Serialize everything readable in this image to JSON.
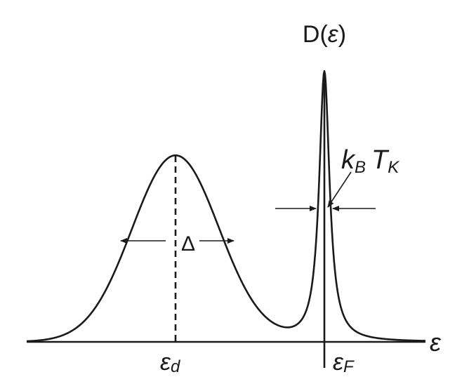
{
  "labels": {
    "y_axis_fn": "D(",
    "y_axis_arg": "ε",
    "y_axis_close": ")",
    "x_axis": "ε",
    "ed_main": "ε",
    "ed_sub": "d",
    "ef_main": "ε",
    "ef_sub": "F",
    "delta": "Δ",
    "kb_main": "k",
    "kb_sub": "B",
    "tk_main": "T",
    "tk_sub": "K"
  },
  "colors": {
    "ink": "#1a1a1a"
  }
}
